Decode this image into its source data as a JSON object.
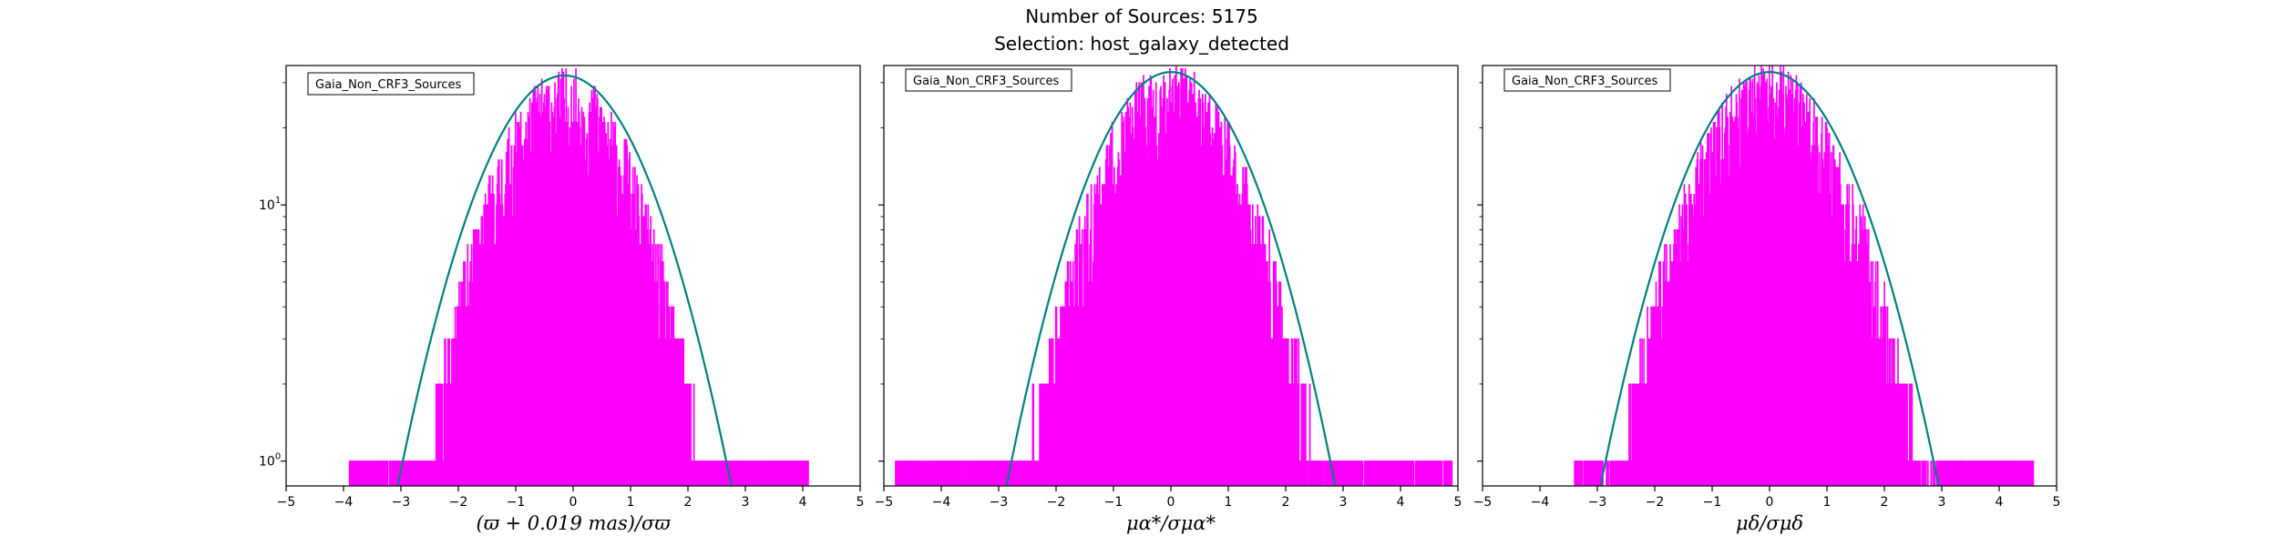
{
  "figure": {
    "title_line1": "Number of Sources: 5175",
    "title_line2": "Selection: host_galaxy_detected"
  },
  "colors": {
    "histogram": "#ff00ff",
    "gaussian": "#008080",
    "axes": "#000000"
  },
  "chart_data": [
    {
      "type": "histogram",
      "legend": "Gaia_Non_CRF3_Sources",
      "xlabel": "(ϖ + 0.019 mas)/σϖ",
      "ylabel": "",
      "xlim": [
        -5,
        5
      ],
      "ylim": [
        0.8,
        35
      ],
      "yscale": "log",
      "xticks": [
        "−5",
        "−4",
        "−3",
        "−2",
        "−1",
        "0",
        "1",
        "2",
        "3",
        "4",
        "5"
      ],
      "yticks": [
        {
          "base": "10",
          "exp": "1",
          "value": 10
        },
        {
          "base": "10",
          "exp": "0",
          "value": 1
        }
      ],
      "gaussian_peak": 32,
      "gaussian_mean": -0.15,
      "gaussian_sigma": 1.07,
      "histogram_bins": {
        "range": [
          -3.9,
          4.1
        ],
        "count": 700,
        "seed": 11,
        "peak": 24,
        "mean": -0.15,
        "sigma": 0.93,
        "tail": 2.6
      }
    },
    {
      "type": "histogram",
      "legend": "Gaia_Non_CRF3_Sources",
      "xlabel": "μα*/σμα*",
      "ylabel": "",
      "xlim": [
        -5,
        5
      ],
      "ylim": [
        0.8,
        35
      ],
      "yscale": "log",
      "xticks": [
        "−5",
        "−4",
        "−3",
        "−2",
        "−1",
        "0",
        "1",
        "2",
        "3",
        "4",
        "5"
      ],
      "yticks": [
        {
          "base": "10",
          "exp": "1",
          "value": 10
        },
        {
          "base": "10",
          "exp": "0",
          "value": 1
        }
      ],
      "gaussian_peak": 33,
      "gaussian_mean": 0.0,
      "gaussian_sigma": 1.05,
      "histogram_bins": {
        "range": [
          -4.8,
          4.9
        ],
        "count": 800,
        "seed": 23,
        "peak": 25,
        "mean": 0.0,
        "sigma": 0.97,
        "tail": 2.8
      }
    },
    {
      "type": "histogram",
      "legend": "Gaia_Non_CRF3_Sources",
      "xlabel": "μδ/σμδ",
      "ylabel": "",
      "xlim": [
        -5,
        5
      ],
      "ylim": [
        0.8,
        35
      ],
      "yscale": "log",
      "xticks": [
        "−5",
        "−4",
        "−3",
        "−2",
        "−1",
        "0",
        "1",
        "2",
        "3",
        "4",
        "5"
      ],
      "yticks": [
        {
          "base": "10",
          "exp": "1",
          "value": 10
        },
        {
          "base": "10",
          "exp": "0",
          "value": 1
        }
      ],
      "gaussian_peak": 33,
      "gaussian_mean": 0.0,
      "gaussian_sigma": 1.08,
      "histogram_bins": {
        "range": [
          -3.4,
          4.6
        ],
        "count": 750,
        "seed": 37,
        "peak": 25,
        "mean": 0.0,
        "sigma": 1.0,
        "tail": 2.9
      }
    }
  ]
}
